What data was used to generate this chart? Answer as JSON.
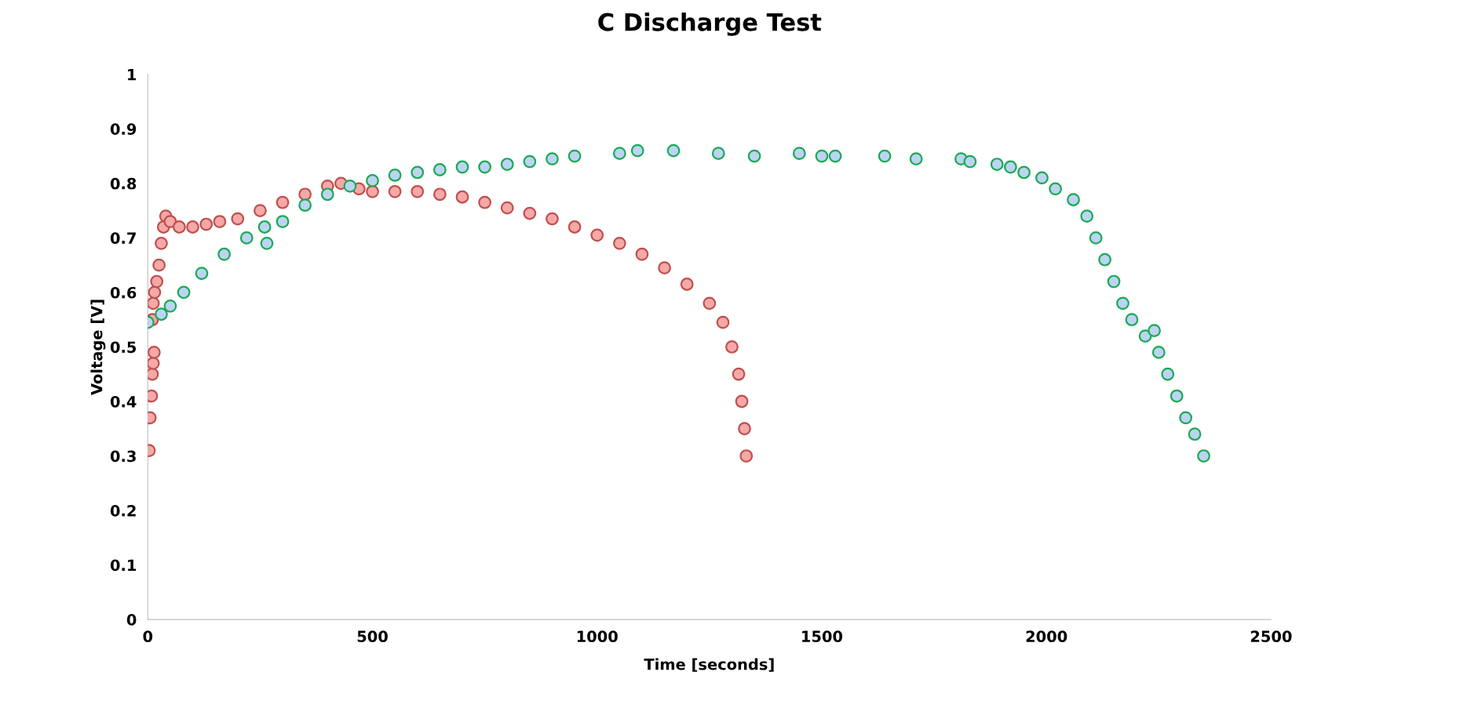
{
  "chart_data": {
    "type": "scatter",
    "title": "C Discharge Test",
    "xlabel": "Time [seconds]",
    "ylabel": "Voltage [V]",
    "xlim": [
      0,
      2500
    ],
    "xticks": [
      0,
      500,
      1000,
      1500,
      2000,
      2500
    ],
    "ylim": [
      0,
      1
    ],
    "yticks": [
      0,
      0.1,
      0.2,
      0.3,
      0.4,
      0.5,
      0.6,
      0.7,
      0.8,
      0.9,
      1
    ],
    "grid": false,
    "marker": "circle",
    "series": [
      {
        "color": "#c0504d",
        "x": [
          3,
          5,
          8,
          10,
          12,
          14,
          10,
          12,
          15,
          20,
          25,
          30,
          35,
          40,
          50,
          70,
          100,
          130,
          160,
          200,
          250,
          300,
          350,
          400,
          430,
          470,
          500,
          550,
          600,
          650,
          700,
          750,
          800,
          850,
          900,
          950,
          1000,
          1050,
          1100,
          1150,
          1200,
          1250,
          1280,
          1300,
          1315,
          1322,
          1328,
          1332
        ],
        "values": [
          0.31,
          0.37,
          0.41,
          0.45,
          0.47,
          0.49,
          0.55,
          0.58,
          0.6,
          0.62,
          0.65,
          0.69,
          0.72,
          0.74,
          0.73,
          0.72,
          0.72,
          0.725,
          0.73,
          0.735,
          0.75,
          0.765,
          0.78,
          0.795,
          0.8,
          0.79,
          0.785,
          0.785,
          0.785,
          0.78,
          0.775,
          0.765,
          0.755,
          0.745,
          0.735,
          0.72,
          0.705,
          0.69,
          0.67,
          0.645,
          0.615,
          0.58,
          0.545,
          0.5,
          0.45,
          0.4,
          0.35,
          0.3
        ]
      },
      {
        "color": "#1aaa55",
        "x": [
          0,
          30,
          50,
          80,
          120,
          170,
          220,
          260,
          265,
          300,
          350,
          400,
          450,
          500,
          550,
          600,
          650,
          700,
          750,
          800,
          850,
          900,
          950,
          1050,
          1090,
          1170,
          1270,
          1350,
          1450,
          1500,
          1530,
          1640,
          1710,
          1810,
          1830,
          1890,
          1920,
          1950,
          1990,
          2020,
          2060,
          2090,
          2110,
          2130,
          2150,
          2170,
          2190,
          2220,
          2240,
          2250,
          2270,
          2290,
          2310,
          2330,
          2350
        ],
        "values": [
          0.545,
          0.56,
          0.575,
          0.6,
          0.635,
          0.67,
          0.7,
          0.72,
          0.69,
          0.73,
          0.76,
          0.78,
          0.795,
          0.805,
          0.815,
          0.82,
          0.825,
          0.83,
          0.83,
          0.835,
          0.84,
          0.845,
          0.85,
          0.855,
          0.86,
          0.86,
          0.855,
          0.85,
          0.855,
          0.85,
          0.85,
          0.85,
          0.845,
          0.845,
          0.84,
          0.835,
          0.83,
          0.82,
          0.81,
          0.79,
          0.77,
          0.74,
          0.7,
          0.66,
          0.62,
          0.58,
          0.55,
          0.52,
          0.53,
          0.49,
          0.45,
          0.41,
          0.37,
          0.34,
          0.3
        ]
      }
    ]
  }
}
